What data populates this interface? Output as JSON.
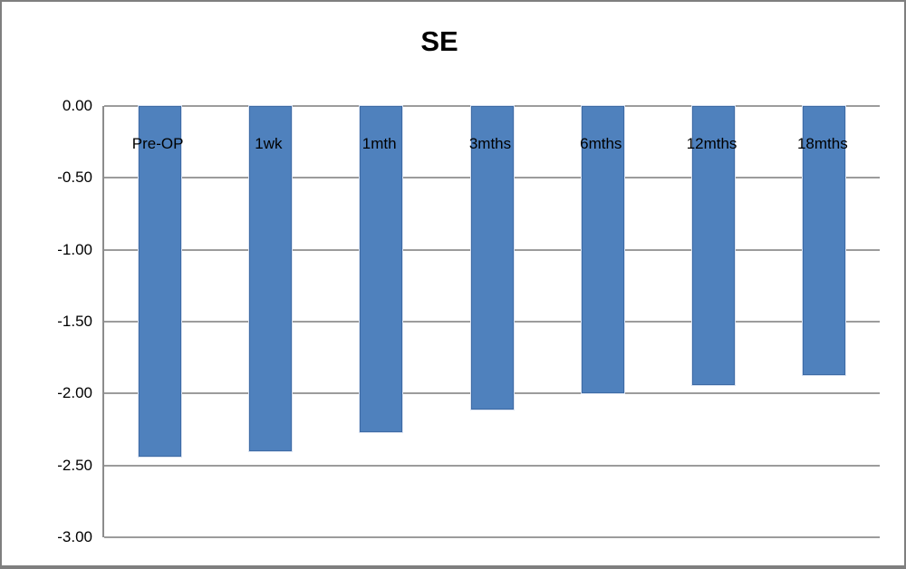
{
  "window": {
    "background": "#ffffff",
    "border_color": "#7f7f7f"
  },
  "chart_data": {
    "type": "bar",
    "title": "SE",
    "categories": [
      "Pre-OP",
      "1wk",
      "1mth",
      "3mths",
      "6mths",
      "12mths",
      "18mths"
    ],
    "values": [
      -2.44,
      -2.4,
      -2.27,
      -2.11,
      -2.0,
      -1.94,
      -1.87
    ],
    "xlabel": "",
    "ylabel": "",
    "ylim": [
      -3.0,
      0.0
    ],
    "ytick_step": 0.5,
    "yticks": [
      "0.00",
      "-0.50",
      "-1.00",
      "-1.50",
      "-2.00",
      "-2.50",
      "-3.00"
    ],
    "grid": "horizontal",
    "legend": "none",
    "category_label_position": "inside-below-zero-line",
    "bar_color": "#4F81BD",
    "bar_border_color": "#3E6BA5",
    "bar_halo_color": "#D9E2F1",
    "gridline_color": "#9c9c9c",
    "axis_color": "#8c8c8c"
  }
}
